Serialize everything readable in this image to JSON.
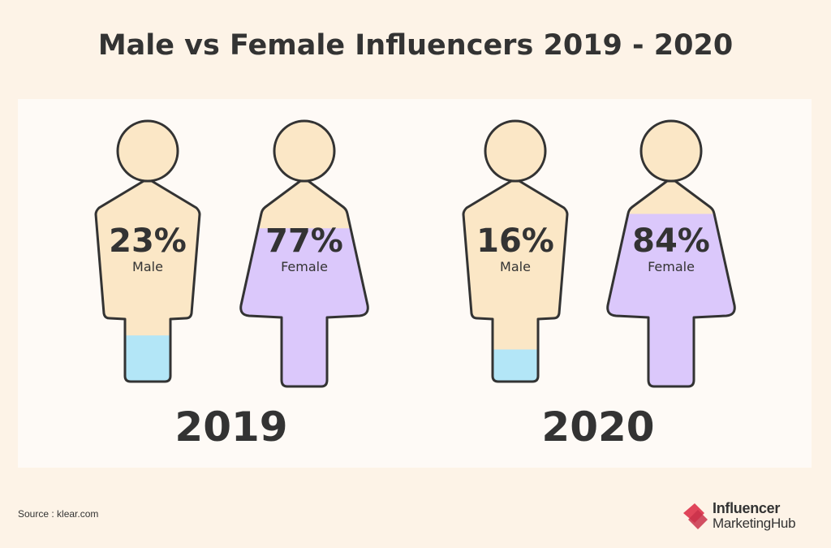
{
  "title": "Male vs Female Influencers 2019  - 2020",
  "source": "Source :  klear.com",
  "logo": {
    "line1": "Influencer",
    "line2": "MarketingHub"
  },
  "colors": {
    "background": "#fdf3e7",
    "panel": "#fefaf6",
    "skin": "#fbe7c6",
    "male": "#b3e6f7",
    "female": "#dbc8fb",
    "outline": "#333333",
    "logo_red": "#e0455a"
  },
  "chart_data": {
    "type": "pictograph",
    "title": "Male vs Female Influencers 2019  - 2020",
    "groups": [
      {
        "year": "2019",
        "items": [
          {
            "gender": "male",
            "value": 23,
            "value_label": "23%",
            "label": "Male"
          },
          {
            "gender": "female",
            "value": 77,
            "value_label": "77%",
            "label": "Female"
          }
        ]
      },
      {
        "year": "2020",
        "items": [
          {
            "gender": "male",
            "value": 16,
            "value_label": "16%",
            "label": "Male"
          },
          {
            "gender": "female",
            "value": 84,
            "value_label": "84%",
            "label": "Female"
          }
        ]
      }
    ]
  }
}
